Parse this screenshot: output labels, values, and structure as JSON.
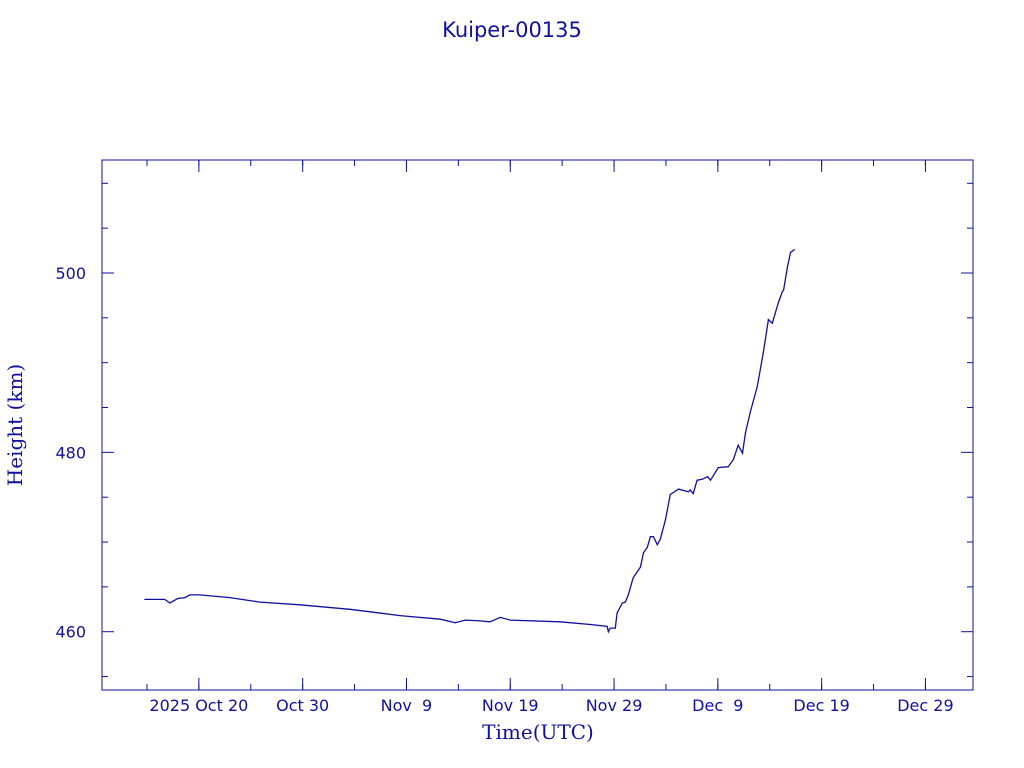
{
  "chart_data": {
    "type": "line",
    "title": "Kuiper-00135",
    "xlabel": "Time(UTC)",
    "ylabel": "Height (km)",
    "xlim": [
      "2025-10-10T16:00Z",
      "2026-01-02T14:00Z"
    ],
    "ylim": [
      453.5,
      512.6
    ],
    "grid": false,
    "color": "#1010a0",
    "x_ticks": [
      {
        "date": "2025-10-20T00:00Z",
        "label": "2025 Oct 20"
      },
      {
        "date": "2025-10-30T00:00Z",
        "label": "Oct 30"
      },
      {
        "date": "2025-11-09T00:00Z",
        "label": "Nov  9"
      },
      {
        "date": "2025-11-19T00:00Z",
        "label": "Nov 19"
      },
      {
        "date": "2025-11-29T00:00Z",
        "label": "Nov 29"
      },
      {
        "date": "2025-12-09T00:00Z",
        "label": "Dec  9"
      },
      {
        "date": "2025-12-19T00:00Z",
        "label": "Dec 19"
      },
      {
        "date": "2025-12-29T00:00Z",
        "label": "Dec 29"
      }
    ],
    "y_ticks": [
      460,
      480,
      500
    ],
    "y_minor_step": 5,
    "x_minor_step_days": 5,
    "series": [
      {
        "x": [
          "2025-10-14T19:00Z",
          "2025-10-16T17:00Z",
          "2025-10-17T05:00Z",
          "2025-10-17T23:00Z",
          "2025-10-18T16:00Z",
          "2025-10-19T03:00Z",
          "2025-10-20T02:00Z",
          "2025-10-23T00:00Z",
          "2025-10-25T21:00Z",
          "2025-10-29T18:00Z",
          "2025-11-03T13:00Z",
          "2025-11-08T09:00Z",
          "2025-11-12T06:00Z",
          "2025-11-13T17:00Z",
          "2025-11-14T16:00Z",
          "2025-11-16T02:00Z",
          "2025-11-17T01:00Z",
          "2025-11-18T01:00Z",
          "2025-11-19T00:00Z",
          "2025-11-23T19:00Z",
          "2025-11-26T17:00Z",
          "2025-11-28T08:00Z",
          "2025-11-28T11:00Z",
          "2025-11-28T15:00Z",
          "2025-11-29T03:00Z",
          "2025-11-29T07:00Z",
          "2025-11-29T19:00Z",
          "2025-11-30T02:00Z",
          "2025-11-30T09:00Z",
          "2025-11-30T20:00Z",
          "2025-12-01T13:00Z",
          "2025-12-01T20:00Z",
          "2025-12-02T05:00Z",
          "2025-12-02T12:00Z",
          "2025-12-02T19:00Z",
          "2025-12-03T04:00Z",
          "2025-12-03T11:00Z",
          "2025-12-03T23:00Z",
          "2025-12-04T10:00Z",
          "2025-12-05T05:00Z",
          "2025-12-06T04:00Z",
          "2025-12-06T08:00Z",
          "2025-12-06T15:00Z",
          "2025-12-07T00:00Z",
          "2025-12-07T12:00Z",
          "2025-12-08T00:00Z",
          "2025-12-08T07:00Z",
          "2025-12-09T01:00Z",
          "2025-12-10T00:00Z",
          "2025-12-10T12:00Z",
          "2025-12-10T23:00Z",
          "2025-12-11T09:00Z",
          "2025-12-11T16:00Z",
          "2025-12-12T03:00Z",
          "2025-12-12T19:00Z",
          "2025-12-13T09:00Z",
          "2025-12-13T21:00Z",
          "2025-12-14T06:00Z",
          "2025-12-14T20:00Z",
          "2025-12-15T05:00Z",
          "2025-12-15T08:00Z",
          "2025-12-15T17:00Z",
          "2025-12-16T00:00Z",
          "2025-12-16T09:00Z"
        ],
        "y": [
          463.6,
          463.6,
          463.2,
          463.7,
          463.8,
          464.1,
          464.1,
          463.8,
          463.3,
          463.0,
          462.5,
          461.8,
          461.4,
          461.0,
          461.3,
          461.2,
          461.1,
          461.6,
          461.3,
          461.1,
          460.8,
          460.6,
          460.0,
          460.4,
          460.4,
          462.1,
          463.2,
          463.3,
          464.1,
          466.0,
          467.2,
          468.8,
          469.4,
          470.6,
          470.6,
          469.7,
          470.3,
          472.5,
          475.3,
          475.9,
          475.6,
          475.8,
          475.4,
          476.9,
          477.0,
          477.3,
          476.9,
          478.3,
          478.4,
          479.2,
          480.8,
          479.9,
          482.2,
          484.5,
          487.3,
          491.1,
          494.8,
          494.4,
          496.7,
          497.9,
          498.1,
          500.7,
          502.3,
          502.6
        ]
      }
    ]
  }
}
